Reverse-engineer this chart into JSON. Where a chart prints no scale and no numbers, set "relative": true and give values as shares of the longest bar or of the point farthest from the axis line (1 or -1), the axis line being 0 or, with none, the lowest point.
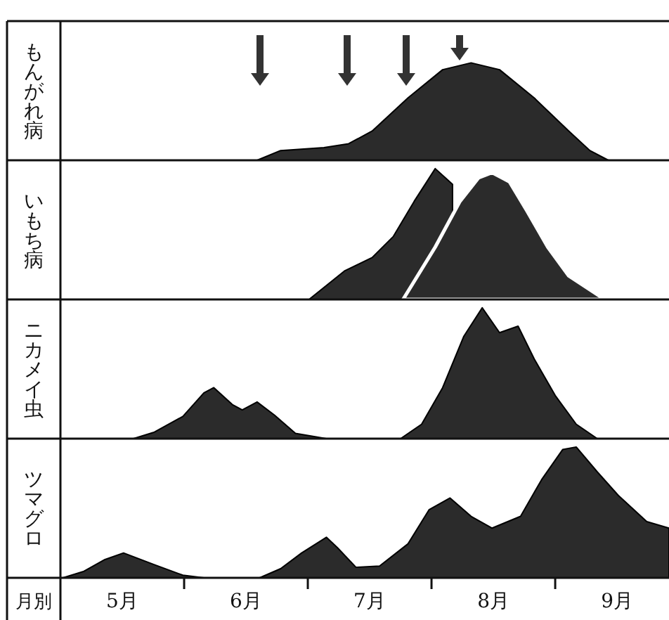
{
  "chart_data": [
    {
      "type": "area",
      "relative": true,
      "ylabel": "もんがれ病",
      "color": "#2b2b2b",
      "xlim": [
        5,
        9.92
      ],
      "x": [
        6.59,
        6.78,
        7.13,
        7.33,
        7.52,
        7.81,
        8.09,
        8.32,
        8.55,
        8.83,
        9.11,
        9.28,
        9.43
      ],
      "values": [
        0,
        0.1,
        0.13,
        0.17,
        0.3,
        0.64,
        0.93,
        1,
        0.93,
        0.64,
        0.3,
        0.1,
        0
      ]
    },
    {
      "type": "area",
      "relative": true,
      "ylabel": "いもち病",
      "xlim": [
        5,
        9.92
      ],
      "series": [
        {
          "color": "#2b2b2b",
          "x": [
            7.01,
            7.3,
            7.52,
            7.69,
            7.86,
            8.03,
            8.17
          ],
          "values": [
            0,
            0.22,
            0.32,
            0.48,
            0.75,
            1,
            0.88
          ]
        },
        {
          "color": "#2b2b2b",
          "x": [
            7.77,
            8.03,
            8.23,
            8.38,
            8.49,
            8.63,
            8.77,
            8.94,
            9.11,
            9.4
          ],
          "values": [
            0,
            0.4,
            0.75,
            0.93,
            0.97,
            0.9,
            0.68,
            0.4,
            0.18,
            0
          ]
        }
      ]
    },
    {
      "type": "area",
      "relative": true,
      "ylabel": "ニカメイ虫",
      "color": "#2b2b2b",
      "xlim": [
        5,
        9.92
      ],
      "x": [
        5.59,
        5.76,
        5.99,
        6.16,
        6.24,
        6.39,
        6.47,
        6.59,
        6.73,
        6.9,
        7.15,
        7.75,
        7.92,
        8.09,
        8.26,
        8.41,
        8.55,
        8.7,
        8.83,
        9.0,
        9.17,
        9.34
      ],
      "values": [
        0,
        0.05,
        0.17,
        0.35,
        0.39,
        0.26,
        0.22,
        0.28,
        0.18,
        0.04,
        0,
        0,
        0.11,
        0.39,
        0.78,
        1,
        0.81,
        0.86,
        0.61,
        0.33,
        0.11,
        0
      ]
    },
    {
      "type": "area",
      "relative": true,
      "ylabel": "ツマグロ",
      "xlabel": "月別",
      "color": "#2b2b2b",
      "xlim": [
        5,
        9.92
      ],
      "xticks": [
        {
          "value": 5.5,
          "label": "5月"
        },
        {
          "value": 6,
          "label": null
        },
        {
          "value": 6.5,
          "label": "6月"
        },
        {
          "value": 7,
          "label": null
        },
        {
          "value": 7.5,
          "label": "7月"
        },
        {
          "value": 8,
          "label": null
        },
        {
          "value": 8.5,
          "label": "8月"
        },
        {
          "value": 9,
          "label": null
        },
        {
          "value": 9.5,
          "label": "9月"
        }
      ],
      "x": [
        5.02,
        5.19,
        5.36,
        5.51,
        5.76,
        5.99,
        6.16,
        6.61,
        6.78,
        6.95,
        7.15,
        7.24,
        7.39,
        7.58,
        7.81,
        7.98,
        8.15,
        8.32,
        8.49,
        8.72,
        8.89,
        9.06,
        9.17,
        9.34,
        9.51,
        9.74,
        9.92
      ],
      "values": [
        0,
        0.05,
        0.14,
        0.19,
        0.1,
        0.02,
        0,
        0,
        0.07,
        0.19,
        0.31,
        0.23,
        0.08,
        0.09,
        0.26,
        0.52,
        0.61,
        0.47,
        0.38,
        0.47,
        0.75,
        0.98,
        1,
        0.81,
        0.63,
        0.43,
        0.38
      ]
    }
  ]
}
